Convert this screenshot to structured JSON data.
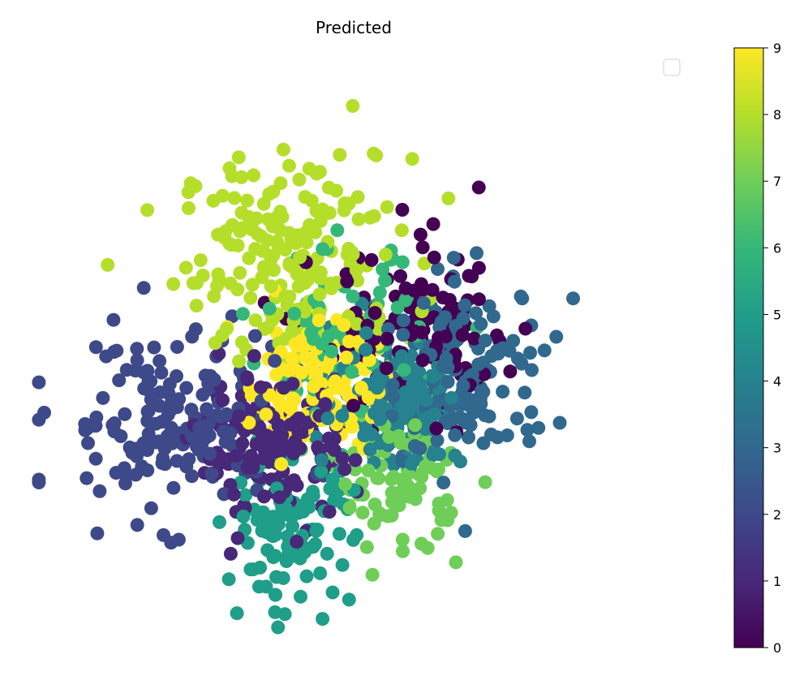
{
  "chart_data": {
    "type": "scatter",
    "title": "Predicted",
    "xlabel": "",
    "ylabel": "",
    "axes_visible": false,
    "grid": false,
    "legend": {
      "placement": "top-right",
      "entries": []
    },
    "colorbar": {
      "colormap": "viridis",
      "range": [
        0,
        9
      ],
      "ticks": [
        "0",
        "1",
        "2",
        "3",
        "4",
        "5",
        "6",
        "7",
        "8",
        "9"
      ],
      "stops": [
        "#440154",
        "#482878",
        "#3e4989",
        "#31688e",
        "#26828e",
        "#1f9e89",
        "#35b779",
        "#6ece58",
        "#b5de2b",
        "#fde725"
      ]
    },
    "xlim": [
      0,
      100
    ],
    "ylim": [
      0,
      100
    ],
    "clusters": [
      {
        "class": 8,
        "cx": 41,
        "cy": 66,
        "sx": 9,
        "sy": 9,
        "n": 200
      },
      {
        "class": 9,
        "cx": 44,
        "cy": 44,
        "sx": 5,
        "sy": 6,
        "n": 140
      },
      {
        "class": 2,
        "cx": 21,
        "cy": 37,
        "sx": 9,
        "sy": 8,
        "n": 170
      },
      {
        "class": 1,
        "cx": 38,
        "cy": 32,
        "sx": 6,
        "sy": 6,
        "n": 150
      },
      {
        "class": 5,
        "cx": 40,
        "cy": 18,
        "sx": 5,
        "sy": 6,
        "n": 110
      },
      {
        "class": 4,
        "cx": 57,
        "cy": 41,
        "sx": 5,
        "sy": 6,
        "n": 150
      },
      {
        "class": 3,
        "cx": 67,
        "cy": 45,
        "sx": 7,
        "sy": 8,
        "n": 160
      },
      {
        "class": 7,
        "cx": 57,
        "cy": 27,
        "sx": 5,
        "sy": 6,
        "n": 90
      },
      {
        "class": 6,
        "cx": 48,
        "cy": 51,
        "sx": 6,
        "sy": 8,
        "n": 80
      },
      {
        "class": 0,
        "cx": 60,
        "cy": 52,
        "sx": 8,
        "sy": 8,
        "n": 120
      }
    ],
    "extent": {
      "xmin": 0,
      "xmax": 100,
      "ymin": 0,
      "ymax": 100
    }
  }
}
